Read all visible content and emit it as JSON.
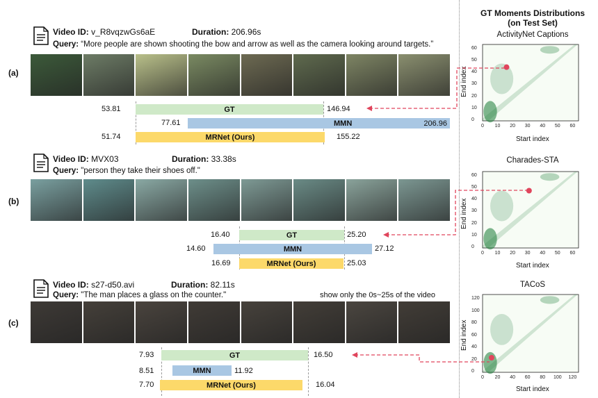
{
  "panels": [
    {
      "tag": "(a)",
      "video_id_label": "Video ID:",
      "video_id": "v_R8vqzwGs6aE",
      "duration_label": "Duration:",
      "duration": "206.96s",
      "query_label": "Query:",
      "query": "“More people are shown shooting the bow and arrow as well as the camera looking around targets.”",
      "note": "",
      "bars": {
        "gt": {
          "label": "GT",
          "start": "53.81",
          "end": "146.94"
        },
        "mmn": {
          "label": "MMN",
          "start": "77.61",
          "end": "206.96"
        },
        "mrnet": {
          "label": "MRNet (Ours)",
          "start": "51.74",
          "end": "155.22"
        }
      },
      "frame_colors": [
        "#3c5a3a",
        "#6d7c66",
        "#b9c08a",
        "#7a8a62",
        "#6d6a52",
        "#5f6a4e",
        "#7e8564",
        "#8a8f6f"
      ]
    },
    {
      "tag": "(b)",
      "video_id_label": "Video ID:",
      "video_id": "MVX03",
      "duration_label": "Duration:",
      "duration": "33.38s",
      "query_label": "Query:",
      "query": "\"person they take their shoes off.\"",
      "note": "",
      "bars": {
        "gt": {
          "label": "GT",
          "start": "16.40",
          "end": "25.20"
        },
        "mmn": {
          "label": "MMN",
          "start": "14.60",
          "end": "27.12"
        },
        "mrnet": {
          "label": "MRNet (Ours)",
          "start": "16.69",
          "end": "25.03"
        }
      },
      "frame_colors": [
        "#7aa0a0",
        "#5f8c8c",
        "#8aa9a4",
        "#6d8f8a",
        "#7e9a95",
        "#6a8b86",
        "#8aa39b",
        "#7c9792"
      ]
    },
    {
      "tag": "(c)",
      "video_id_label": "Video ID:",
      "video_id": "s27-d50.avi",
      "duration_label": "Duration:",
      "duration": "82.11s",
      "query_label": "Query:",
      "query": "\"The man places a glass on the counter.\"",
      "note": "show only the 0s~25s of the video",
      "bars": {
        "gt": {
          "label": "GT",
          "start": "7.93",
          "end": "16.50"
        },
        "mmn": {
          "label": "MMN",
          "start": "8.51",
          "end": "11.92"
        },
        "mrnet": {
          "label": "MRNet (Ours)",
          "start": "7.70",
          "end": "16.04"
        }
      },
      "frame_colors": [
        "#3e3a36",
        "#45403a",
        "#4a443e",
        "#403b36",
        "#47423c",
        "#433e38",
        "#4b4640",
        "#423d37"
      ]
    }
  ],
  "side": {
    "title_line1": "GT Moments Distributions",
    "title_line2": "(on Test Set)",
    "plots": [
      {
        "title": "ActivityNet Captions",
        "xlabel": "Start index",
        "ylabel": "End index",
        "xticks": [
          "0",
          "10",
          "20",
          "30",
          "40",
          "50",
          "60"
        ],
        "yticks": [
          "0",
          "10",
          "20",
          "30",
          "40",
          "50",
          "60"
        ],
        "marker": {
          "x": 16,
          "y": 45
        },
        "max": 64
      },
      {
        "title": "Charades-STA",
        "xlabel": "Start index",
        "ylabel": "End index",
        "xticks": [
          "0",
          "10",
          "20",
          "30",
          "40",
          "50",
          "60"
        ],
        "yticks": [
          "0",
          "10",
          "20",
          "30",
          "40",
          "50",
          "60"
        ],
        "marker": {
          "x": 31,
          "y": 48
        },
        "max": 64
      },
      {
        "title": "TACoS",
        "xlabel": "Start index",
        "ylabel": "End index",
        "xticks": [
          "0",
          "20",
          "40",
          "60",
          "80",
          "100",
          "120"
        ],
        "yticks": [
          "0",
          "20",
          "40",
          "60",
          "80",
          "100",
          "120"
        ],
        "marker": {
          "x": 12,
          "y": 24
        },
        "max": 128
      }
    ]
  },
  "colors": {
    "gt": "#cfe9c8",
    "mmn": "#a9c7e3",
    "mrnet": "#fcd96a",
    "marker": "#e0455c",
    "heat": "#1a7a35"
  }
}
